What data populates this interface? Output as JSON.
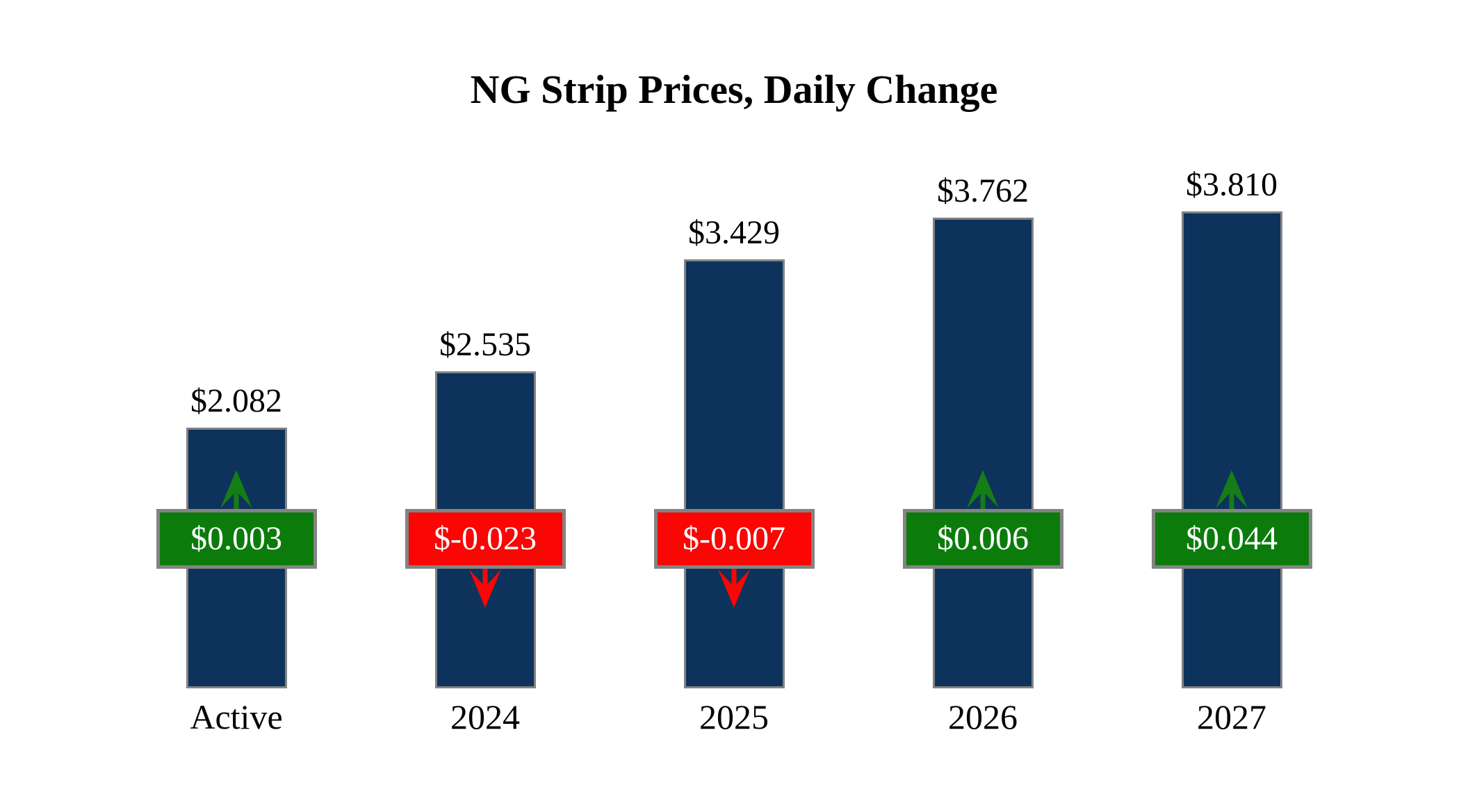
{
  "chart_data": {
    "type": "bar",
    "title": "NG Strip Prices, Daily Change",
    "categories": [
      "Active",
      "2024",
      "2025",
      "2026",
      "2027"
    ],
    "values": [
      2.082,
      2.535,
      3.429,
      3.762,
      3.81
    ],
    "changes": [
      0.003,
      -0.023,
      -0.007,
      0.006,
      0.044
    ],
    "xlabel": "",
    "ylabel": "",
    "ylim": [
      0,
      4.2
    ],
    "axes_visible": false,
    "grid": false,
    "legend": "none",
    "data_labels_position": "above bars",
    "bars": [
      {
        "category": "Active",
        "price": 2.082,
        "price_label": "$2.082",
        "change": 0.003,
        "change_label": "$0.003",
        "direction": "up"
      },
      {
        "category": "2024",
        "price": 2.535,
        "price_label": "$2.535",
        "change": -0.023,
        "change_label": "$-0.023",
        "direction": "down"
      },
      {
        "category": "2025",
        "price": 3.429,
        "price_label": "$3.429",
        "change": -0.007,
        "change_label": "$-0.007",
        "direction": "down"
      },
      {
        "category": "2026",
        "price": 3.762,
        "price_label": "$3.762",
        "change": 0.006,
        "change_label": "$0.006",
        "direction": "up"
      },
      {
        "category": "2027",
        "price": 3.81,
        "price_label": "$3.810",
        "change": 0.044,
        "change_label": "$0.044",
        "direction": "up"
      }
    ],
    "colors": {
      "background": "#ffffff",
      "bar_fill": "#0d335c",
      "bar_border": "#838383",
      "positive_badge": "#0b7c0b",
      "negative_badge": "#fb0505",
      "positive_arrow": "#157d15",
      "negative_arrow": "#fb0505",
      "badge_border": "#838383",
      "badge_text": "#ffffff",
      "label_text": "#000000"
    }
  }
}
